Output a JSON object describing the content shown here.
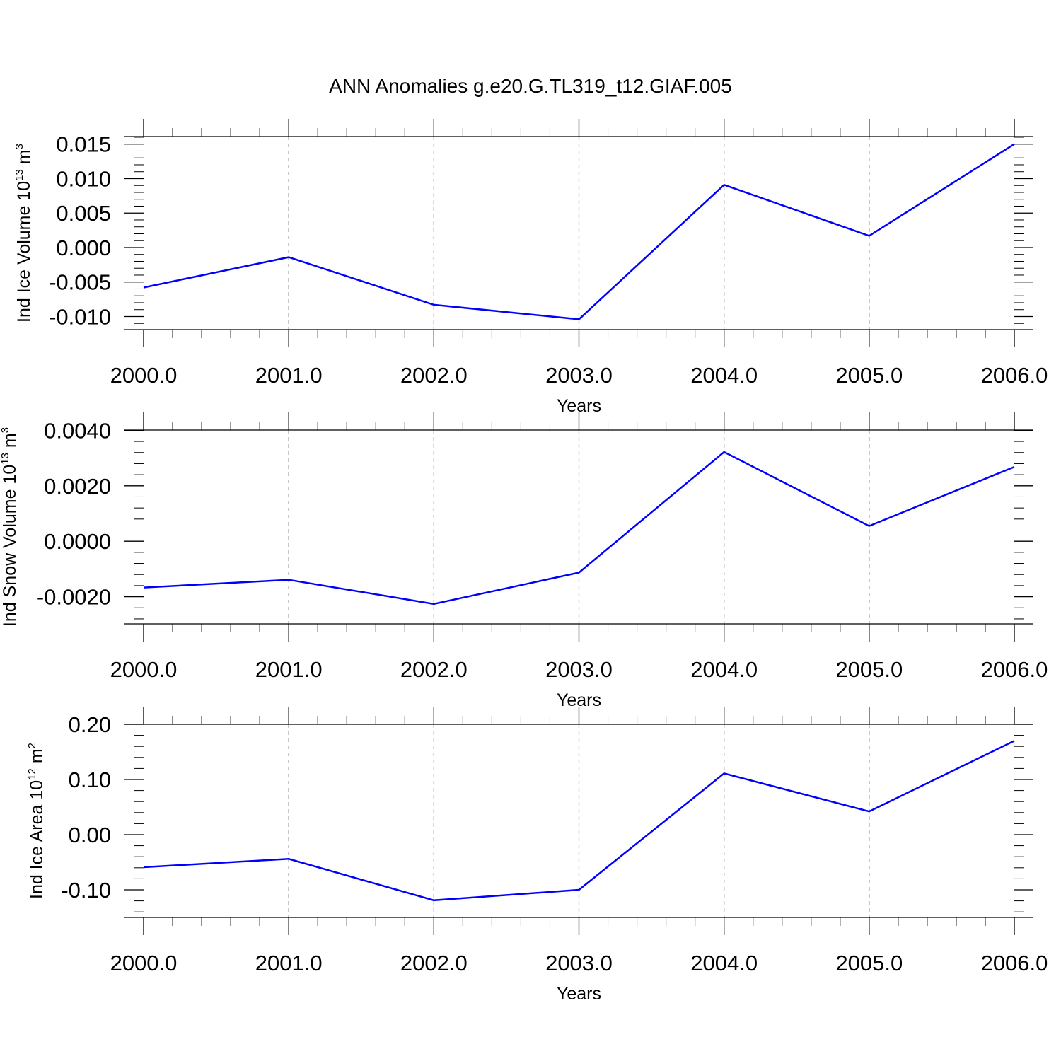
{
  "title": "ANN Anomalies g.e20.G.TL319_t12.GIAF.005",
  "colors": {
    "line": "#0000ff",
    "axis": "#000000",
    "grid": "#808080"
  },
  "chart_data": [
    {
      "type": "line",
      "xlabel": "Years",
      "ylabel_main": "Ind Ice Volume 10",
      "ylabel_exp": "13",
      "ylabel_unit": " m",
      "ylabel_unit_exp": "3",
      "x": [
        2000,
        2001,
        2002,
        2003,
        2004,
        2005,
        2006
      ],
      "x_tick_labels": [
        "2000.0",
        "2001.0",
        "2002.0",
        "2003.0",
        "2004.0",
        "2005.0",
        "2006.0"
      ],
      "y": [
        -0.0058,
        -0.0014,
        -0.0083,
        -0.0104,
        0.0091,
        0.0017,
        0.015
      ],
      "yticks": [
        -0.01,
        -0.005,
        0.0,
        0.005,
        0.01,
        0.015
      ],
      "y_tick_labels": [
        "-0.010",
        "-0.005",
        "0.000",
        "0.005",
        "0.010",
        "0.015"
      ],
      "ylim": [
        -0.0119,
        0.0161
      ],
      "xlim": [
        2000,
        2006
      ],
      "grid": "vertical dashed"
    },
    {
      "type": "line",
      "xlabel": "Years",
      "ylabel_main": "Ind Snow Volume 10",
      "ylabel_exp": "13",
      "ylabel_unit": " m",
      "ylabel_unit_exp": "3",
      "x": [
        2000,
        2001,
        2002,
        2003,
        2004,
        2005,
        2006
      ],
      "x_tick_labels": [
        "2000.0",
        "2001.0",
        "2002.0",
        "2003.0",
        "2004.0",
        "2005.0",
        "2006.0"
      ],
      "y": [
        -0.00167,
        -0.00139,
        -0.00226,
        -0.00113,
        0.00322,
        0.00055,
        0.00268
      ],
      "yticks": [
        -0.002,
        0.0,
        0.002,
        0.004
      ],
      "y_tick_labels": [
        "-0.0020",
        "0.0000",
        "0.0020",
        "0.0040"
      ],
      "ylim": [
        -0.00298,
        0.00401
      ],
      "xlim": [
        2000,
        2006
      ],
      "grid": "vertical dashed"
    },
    {
      "type": "line",
      "xlabel": "Years",
      "ylabel_main": "Ind Ice Area 10",
      "ylabel_exp": "12",
      "ylabel_unit": " m",
      "ylabel_unit_exp": "2",
      "x": [
        2000,
        2001,
        2002,
        2003,
        2004,
        2005,
        2006
      ],
      "x_tick_labels": [
        "2000.0",
        "2001.0",
        "2002.0",
        "2003.0",
        "2004.0",
        "2005.0",
        "2006.0"
      ],
      "y": [
        -0.059,
        -0.044,
        -0.119,
        -0.1,
        0.111,
        0.042,
        0.17
      ],
      "yticks": [
        -0.1,
        0.0,
        0.1,
        0.2
      ],
      "y_tick_labels": [
        "-0.10",
        "0.00",
        "0.10",
        "0.20"
      ],
      "ylim": [
        -0.15,
        0.2
      ],
      "xlim": [
        2000,
        2006
      ],
      "grid": "vertical dashed"
    }
  ]
}
